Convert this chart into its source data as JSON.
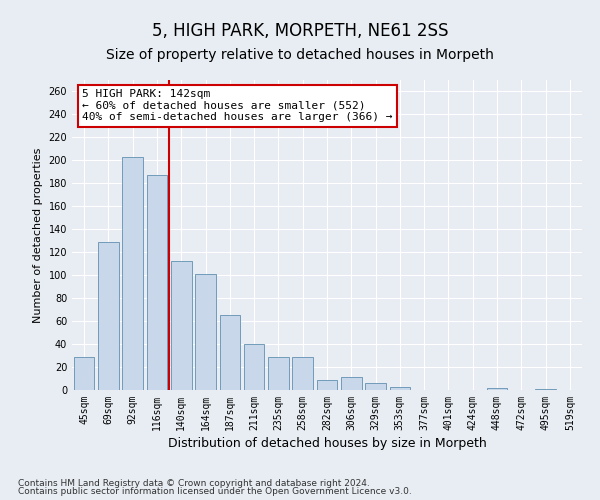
{
  "title": "5, HIGH PARK, MORPETH, NE61 2SS",
  "subtitle": "Size of property relative to detached houses in Morpeth",
  "xlabel": "Distribution of detached houses by size in Morpeth",
  "ylabel": "Number of detached properties",
  "categories": [
    "45sqm",
    "69sqm",
    "92sqm",
    "116sqm",
    "140sqm",
    "164sqm",
    "187sqm",
    "211sqm",
    "235sqm",
    "258sqm",
    "282sqm",
    "306sqm",
    "329sqm",
    "353sqm",
    "377sqm",
    "401sqm",
    "424sqm",
    "448sqm",
    "472sqm",
    "495sqm",
    "519sqm"
  ],
  "values": [
    29,
    129,
    203,
    187,
    112,
    101,
    65,
    40,
    29,
    29,
    9,
    11,
    6,
    3,
    0,
    0,
    0,
    2,
    0,
    1,
    0
  ],
  "bar_color": "#c8d8ea",
  "bar_edge_color": "#6090b0",
  "vline_x_index": 3.5,
  "vline_color": "#cc0000",
  "annotation_text": "5 HIGH PARK: 142sqm\n← 60% of detached houses are smaller (552)\n40% of semi-detached houses are larger (366) →",
  "annotation_box_facecolor": "#ffffff",
  "annotation_box_edgecolor": "#cc0000",
  "ylim": [
    0,
    270
  ],
  "yticks": [
    0,
    20,
    40,
    60,
    80,
    100,
    120,
    140,
    160,
    180,
    200,
    220,
    240,
    260
  ],
  "background_color": "#e8edf3",
  "plot_background_color": "#e8edf3",
  "footer_line1": "Contains HM Land Registry data © Crown copyright and database right 2024.",
  "footer_line2": "Contains public sector information licensed under the Open Government Licence v3.0.",
  "title_fontsize": 12,
  "subtitle_fontsize": 10,
  "xlabel_fontsize": 9,
  "ylabel_fontsize": 8,
  "tick_fontsize": 7,
  "annotation_fontsize": 8,
  "footer_fontsize": 6.5,
  "grid_color": "#ffffff",
  "grid_linewidth": 0.8
}
